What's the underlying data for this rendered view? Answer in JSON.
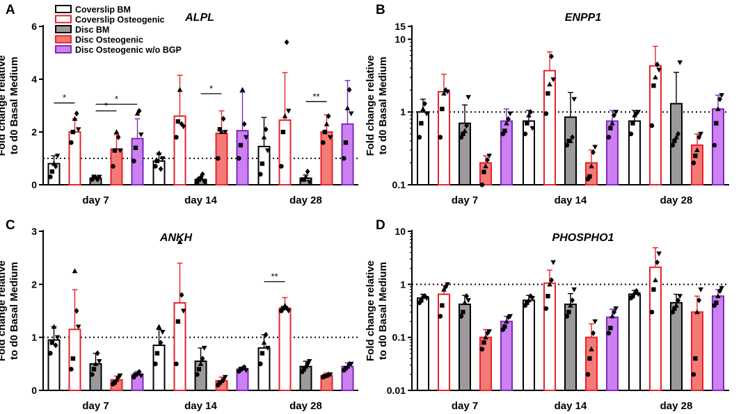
{
  "legend": [
    {
      "label": "Coverslip BM",
      "fill": "#ffffff",
      "stroke": "#000000"
    },
    {
      "label": "Coverslip Osteogenic",
      "fill": "#ffffff",
      "stroke": "#e8212a"
    },
    {
      "label": "Disc BM",
      "fill": "#9a9a9a",
      "stroke": "#000000"
    },
    {
      "label": "Disc Osteogenic",
      "fill": "#f47a76",
      "stroke": "#e8212a"
    },
    {
      "label": "Disc Osteogenic w/o BGP",
      "fill": "#cc80f2",
      "stroke": "#7a2bb8"
    }
  ],
  "colors": {
    "coverslip_bm": "#000000",
    "coverslip_ost_stroke": "#e8212a",
    "disc_bm_fill": "#9a9a9a",
    "disc_ost_fill": "#f47a76",
    "disc_wobgp_fill": "#cc80f2",
    "disc_wobgp_stroke": "#7a2bb8"
  },
  "chart_data": [
    {
      "panel": "A",
      "title": "ALPL",
      "type": "bar",
      "scale": "linear",
      "ylabel": "Fold change relative to d0 Basal Medium",
      "ylim": [
        0,
        6
      ],
      "yticks": [
        0,
        2,
        4,
        6
      ],
      "yticklabels": [
        "0",
        "2",
        "4",
        "6"
      ],
      "reference_line": 1,
      "categories": [
        "day 7",
        "day 14",
        "day 28"
      ],
      "series": [
        {
          "name": "Coverslip BM",
          "values": [
            0.8,
            0.9,
            1.45
          ],
          "errors": [
            0.3,
            0.3,
            1.1
          ],
          "points": [
            [
              0.3,
              0.5,
              0.8,
              0.7,
              1.1
            ],
            [
              0.7,
              0.9,
              1.2,
              0.6,
              1.0
            ],
            [
              0.4,
              0.8,
              1.8,
              2.1,
              1.3
            ]
          ]
        },
        {
          "name": "Coverslip Osteogenic",
          "values": [
            2.0,
            2.6,
            2.45
          ],
          "errors": [
            0.5,
            1.55,
            1.8
          ],
          "points": [
            [
              1.6,
              2.0,
              2.5,
              2.7,
              2.1
            ],
            [
              1.8,
              2.4,
              3.6,
              2.3,
              2.2
            ],
            [
              0.7,
              2.0,
              2.6,
              5.4,
              2.8
            ]
          ]
        },
        {
          "name": "Disc BM",
          "values": [
            0.25,
            0.2,
            0.25
          ],
          "errors": [
            0.05,
            0.1,
            0.12
          ],
          "points": [
            [
              0.2,
              0.3,
              0.3,
              0.2,
              0.3
            ],
            [
              0.1,
              0.2,
              0.3,
              0.4,
              0.1
            ],
            [
              0.2,
              0.2,
              0.3,
              0.5,
              0.1
            ]
          ]
        },
        {
          "name": "Disc Osteogenic",
          "values": [
            1.35,
            1.95,
            2.0
          ],
          "errors": [
            0.55,
            0.85,
            0.65
          ],
          "points": [
            [
              0.7,
              1.3,
              2.0,
              1.8,
              1.3
            ],
            [
              1.0,
              2.1,
              2.0,
              2.5,
              2.0
            ],
            [
              1.6,
              2.0,
              2.3,
              2.6,
              1.8
            ]
          ]
        },
        {
          "name": "Disc Osteogenic w/o BGP",
          "values": [
            1.75,
            2.05,
            2.3
          ],
          "errors": [
            0.75,
            1.45,
            1.65
          ],
          "points": [
            [
              0.9,
              1.4,
              2.7,
              2.8,
              1.9
            ],
            [
              1.0,
              1.5,
              3.6,
              2.3,
              1.8
            ],
            [
              1.0,
              1.6,
              2.9,
              3.6,
              2.7
            ]
          ]
        }
      ],
      "significance": [
        {
          "label": "*",
          "category": 0,
          "from": 0,
          "to": 1,
          "y": 3.1
        },
        {
          "label": "*",
          "category": 0,
          "from": 2,
          "to": 3,
          "y": 2.8
        },
        {
          "label": "*",
          "category": 0,
          "from": 2,
          "to": 4,
          "y": 3.05
        },
        {
          "label": "*",
          "category": 1,
          "from": 2,
          "to": 3,
          "y": 3.45
        },
        {
          "label": "**",
          "category": 2,
          "from": 2,
          "to": 3,
          "y": 3.15
        }
      ]
    },
    {
      "panel": "B",
      "title": "ENPP1",
      "type": "bar",
      "scale": "log",
      "ylabel": "Fold change relative to d0 Basal Medium",
      "ylim": [
        0.1,
        15
      ],
      "yticks": [
        0.1,
        1,
        10,
        15
      ],
      "yticklabels": [
        "0.1",
        "1",
        "10",
        "15"
      ],
      "reference_line": 1,
      "categories": [
        "day 7",
        "day 14",
        "day 28"
      ],
      "series": [
        {
          "name": "Coverslip BM",
          "values": [
            1.0,
            0.75,
            0.75
          ],
          "errors": [
            0.5,
            0.3,
            0.3
          ],
          "points": [
            [
              0.45,
              0.7,
              1.1,
              1.3,
              0.95
            ],
            [
              0.5,
              0.7,
              0.9,
              1.0,
              0.6
            ],
            [
              0.5,
              0.7,
              0.9,
              0.95,
              1.0
            ]
          ]
        },
        {
          "name": "Coverslip Osteogenic",
          "values": [
            1.9,
            3.7,
            4.3
          ],
          "errors": [
            1.4,
            3.0,
            3.7
          ],
          "points": [
            [
              0.45,
              1.1,
              1.8,
              2.0,
              1.9
            ],
            [
              0.95,
              1.8,
              2.4,
              5.8,
              2.8
            ],
            [
              0.65,
              2.3,
              3.0,
              4.5,
              3.8
            ]
          ]
        },
        {
          "name": "Disc BM",
          "values": [
            0.7,
            0.85,
            1.3
          ],
          "errors": [
            0.55,
            1.0,
            2.2
          ],
          "points": [
            [
              0.45,
              0.5,
              0.55,
              0.65,
              1.6
            ],
            [
              0.35,
              0.4,
              0.4,
              0.45,
              1.5
            ],
            [
              0.35,
              0.4,
              0.45,
              0.5,
              4.8
            ]
          ]
        },
        {
          "name": "Disc Osteogenic",
          "values": [
            0.2,
            0.2,
            0.35
          ],
          "errors": [
            0.05,
            0.1,
            0.15
          ],
          "points": [
            [
              0.1,
              0.15,
              0.18,
              0.22,
              0.25
            ],
            [
              0.12,
              0.13,
              0.18,
              0.28,
              0.33
            ],
            [
              0.2,
              0.25,
              0.3,
              0.45,
              0.5
            ]
          ]
        },
        {
          "name": "Disc Osteogenic w/o BGP",
          "values": [
            0.75,
            0.75,
            1.1
          ],
          "errors": [
            0.35,
            0.3,
            0.6
          ],
          "points": [
            [
              0.5,
              0.55,
              0.7,
              0.8,
              0.95
            ],
            [
              0.45,
              0.6,
              0.7,
              0.9,
              1.0
            ],
            [
              0.35,
              0.7,
              1.1,
              1.5,
              1.7
            ]
          ]
        }
      ],
      "significance": []
    },
    {
      "panel": "C",
      "title": "ANKH",
      "type": "bar",
      "scale": "linear",
      "ylabel": "Fold change relative to d0 Basal Medium",
      "ylim": [
        0,
        3
      ],
      "yticks": [
        0,
        1,
        2,
        3
      ],
      "yticklabels": [
        "0",
        "1",
        "2",
        "3"
      ],
      "reference_line": 1,
      "categories": [
        "day 7",
        "day 14",
        "day 28"
      ],
      "series": [
        {
          "name": "Coverslip BM",
          "values": [
            0.95,
            0.85,
            0.8
          ],
          "errors": [
            0.25,
            0.3,
            0.25
          ],
          "points": [
            [
              0.7,
              0.9,
              1.2,
              0.85,
              1.0
            ],
            [
              0.5,
              0.7,
              1.2,
              0.9,
              1.1
            ],
            [
              0.5,
              0.7,
              0.9,
              1.05,
              0.8
            ]
          ]
        },
        {
          "name": "Coverslip Osteogenic",
          "values": [
            1.15,
            1.65,
            1.55
          ],
          "errors": [
            0.75,
            0.75,
            0.2
          ],
          "points": [
            [
              0.4,
              0.6,
              2.25,
              1.5,
              1.2
            ],
            [
              0.5,
              1.3,
              2.8,
              1.8,
              1.5
            ],
            [
              1.5,
              1.55,
              1.6,
              1.55,
              1.5
            ]
          ]
        },
        {
          "name": "Disc BM",
          "values": [
            0.5,
            0.55,
            0.45
          ],
          "errors": [
            0.2,
            0.25,
            0.1
          ],
          "points": [
            [
              0.3,
              0.4,
              0.5,
              0.7,
              0.55
            ],
            [
              0.3,
              0.4,
              0.5,
              0.6,
              0.8
            ],
            [
              0.35,
              0.4,
              0.45,
              0.5,
              0.55
            ]
          ]
        },
        {
          "name": "Disc Osteogenic",
          "values": [
            0.2,
            0.18,
            0.28
          ],
          "errors": [
            0.07,
            0.07,
            0.05
          ],
          "points": [
            [
              0.12,
              0.15,
              0.2,
              0.25,
              0.28
            ],
            [
              0.1,
              0.15,
              0.18,
              0.2,
              0.25
            ],
            [
              0.25,
              0.27,
              0.28,
              0.3,
              0.3
            ]
          ]
        },
        {
          "name": "Disc Osteogenic w/o BGP",
          "values": [
            0.3,
            0.4,
            0.45
          ],
          "errors": [
            0.06,
            0.04,
            0.07
          ],
          "points": [
            [
              0.25,
              0.3,
              0.32,
              0.35,
              0.28
            ],
            [
              0.36,
              0.4,
              0.42,
              0.44,
              0.38
            ],
            [
              0.38,
              0.42,
              0.45,
              0.5,
              0.5
            ]
          ]
        }
      ],
      "significance": [
        {
          "label": "**",
          "category": 2,
          "from": 0,
          "to": 1,
          "y": 2.05
        }
      ]
    },
    {
      "panel": "D",
      "title": "PHOSPHO1",
      "type": "bar",
      "scale": "log",
      "ylabel": "Fold change relative to d0 Basal Medium",
      "ylim": [
        0.01,
        10
      ],
      "yticks": [
        0.01,
        0.1,
        1,
        10
      ],
      "yticklabels": [
        "0.01",
        "0.1",
        "1",
        "10"
      ],
      "reference_line": 1,
      "categories": [
        "day 7",
        "day 14",
        "day 28"
      ],
      "series": [
        {
          "name": "Coverslip BM",
          "values": [
            0.55,
            0.5,
            0.65
          ],
          "errors": [
            0.1,
            0.12,
            0.12
          ],
          "points": [
            [
              0.45,
              0.5,
              0.6,
              0.6,
              0.55
            ],
            [
              0.4,
              0.45,
              0.5,
              0.6,
              0.55
            ],
            [
              0.55,
              0.6,
              0.7,
              0.75,
              0.65
            ]
          ]
        },
        {
          "name": "Coverslip Osteogenic",
          "values": [
            0.65,
            1.05,
            2.1
          ],
          "errors": [
            0.3,
            0.8,
            2.8
          ],
          "points": [
            [
              0.25,
              0.4,
              0.8,
              0.9,
              1.0
            ],
            [
              0.35,
              0.6,
              1.0,
              1.2,
              2.6
            ],
            [
              0.3,
              0.8,
              1.2,
              2.6,
              3.8
            ]
          ]
        },
        {
          "name": "Disc BM",
          "values": [
            0.42,
            0.42,
            0.45
          ],
          "errors": [
            0.2,
            0.25,
            0.2
          ],
          "points": [
            [
              0.25,
              0.3,
              0.45,
              0.6,
              0.5
            ],
            [
              0.25,
              0.3,
              0.4,
              0.5,
              0.8
            ],
            [
              0.3,
              0.35,
              0.4,
              0.5,
              0.6
            ]
          ]
        },
        {
          "name": "Disc Osteogenic",
          "values": [
            0.1,
            0.1,
            0.3
          ],
          "errors": [
            0.04,
            0.08,
            0.3
          ],
          "points": [
            [
              0.06,
              0.08,
              0.1,
              0.12,
              0.13
            ],
            [
              0.02,
              0.04,
              0.06,
              0.12,
              0.2
            ],
            [
              0.02,
              0.04,
              0.3,
              0.5,
              0.8
            ]
          ]
        },
        {
          "name": "Disc Osteogenic w/o BGP",
          "values": [
            0.2,
            0.24,
            0.6
          ],
          "errors": [
            0.05,
            0.1,
            0.2
          ],
          "points": [
            [
              0.14,
              0.16,
              0.2,
              0.24,
              0.25
            ],
            [
              0.12,
              0.15,
              0.25,
              0.3,
              0.35
            ],
            [
              0.4,
              0.45,
              0.6,
              0.75,
              0.85
            ]
          ]
        }
      ],
      "significance": []
    }
  ]
}
